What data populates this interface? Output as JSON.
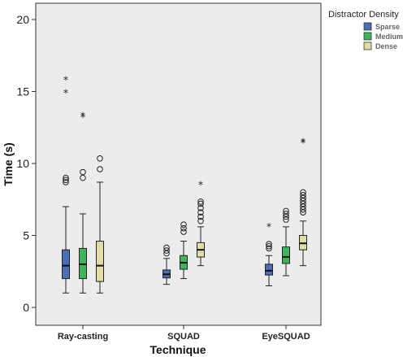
{
  "chart_data": {
    "type": "boxplot",
    "xlabel": "Technique",
    "ylabel": "Time (s)",
    "ylim": [
      -1,
      21
    ],
    "yticks": [
      0,
      5,
      10,
      15,
      20
    ],
    "categories": [
      "Ray-casting",
      "SQUAD",
      "EyeSQUAD"
    ],
    "legend": {
      "title": "Distractor Density",
      "placement": "top-right",
      "entries": [
        "Sparse",
        "Medium",
        "Dense"
      ]
    },
    "colors": {
      "Sparse": "#4a6fb8",
      "Medium": "#3fb45a",
      "Dense": "#e2dca8",
      "plot_background": "#ececec"
    },
    "series": [
      {
        "name": "Sparse",
        "boxes": [
          {
            "category": "Ray-casting",
            "min": 1.0,
            "q1": 2.0,
            "median": 2.9,
            "q3": 4.0,
            "max": 7.0,
            "outliers": [
              8.7,
              8.85,
              9.0
            ],
            "extremes": [
              14.9,
              15.8
            ]
          },
          {
            "category": "SQUAD",
            "min": 1.6,
            "q1": 2.05,
            "median": 2.3,
            "q3": 2.6,
            "max": 3.4,
            "outliers": [
              3.75,
              3.95,
              4.15
            ],
            "extremes": []
          },
          {
            "category": "EyeSQUAD",
            "min": 1.5,
            "q1": 2.25,
            "median": 2.55,
            "q3": 3.0,
            "max": 3.6,
            "outliers": [
              4.1,
              4.25,
              4.4
            ],
            "extremes": [
              5.6
            ]
          }
        ]
      },
      {
        "name": "Medium",
        "boxes": [
          {
            "category": "Ray-casting",
            "min": 1.0,
            "q1": 2.0,
            "median": 3.0,
            "q3": 4.1,
            "max": 6.5,
            "outliers": [
              9.0,
              9.4
            ],
            "extremes": [
              13.2,
              13.3
            ]
          },
          {
            "category": "SQUAD",
            "min": 2.0,
            "q1": 2.65,
            "median": 3.1,
            "q3": 3.6,
            "max": 4.6,
            "outliers": [
              5.25,
              5.5,
              5.75
            ],
            "extremes": []
          },
          {
            "category": "EyeSQUAD",
            "min": 2.2,
            "q1": 3.05,
            "median": 3.5,
            "q3": 4.2,
            "max": 5.6,
            "outliers": [
              6.1,
              6.3,
              6.5,
              6.7
            ],
            "extremes": []
          }
        ]
      },
      {
        "name": "Dense",
        "boxes": [
          {
            "category": "Ray-casting",
            "min": 1.0,
            "q1": 1.8,
            "median": 2.9,
            "q3": 4.6,
            "max": 8.7,
            "outliers": [
              9.6,
              10.35
            ],
            "extremes": []
          },
          {
            "category": "SQUAD",
            "min": 2.9,
            "q1": 3.5,
            "median": 4.0,
            "q3": 4.5,
            "max": 5.6,
            "outliers": [
              6.0,
              6.3,
              6.6,
              6.9,
              7.2,
              7.35
            ],
            "extremes": [
              8.5
            ]
          },
          {
            "category": "EyeSQUAD",
            "min": 2.9,
            "q1": 4.0,
            "median": 4.45,
            "q3": 5.0,
            "max": 6.0,
            "outliers": [
              6.6,
              6.8,
              7.0,
              7.2,
              7.4,
              7.6,
              7.8,
              8.0
            ],
            "extremes": [
              11.4,
              11.5
            ]
          }
        ]
      }
    ]
  }
}
